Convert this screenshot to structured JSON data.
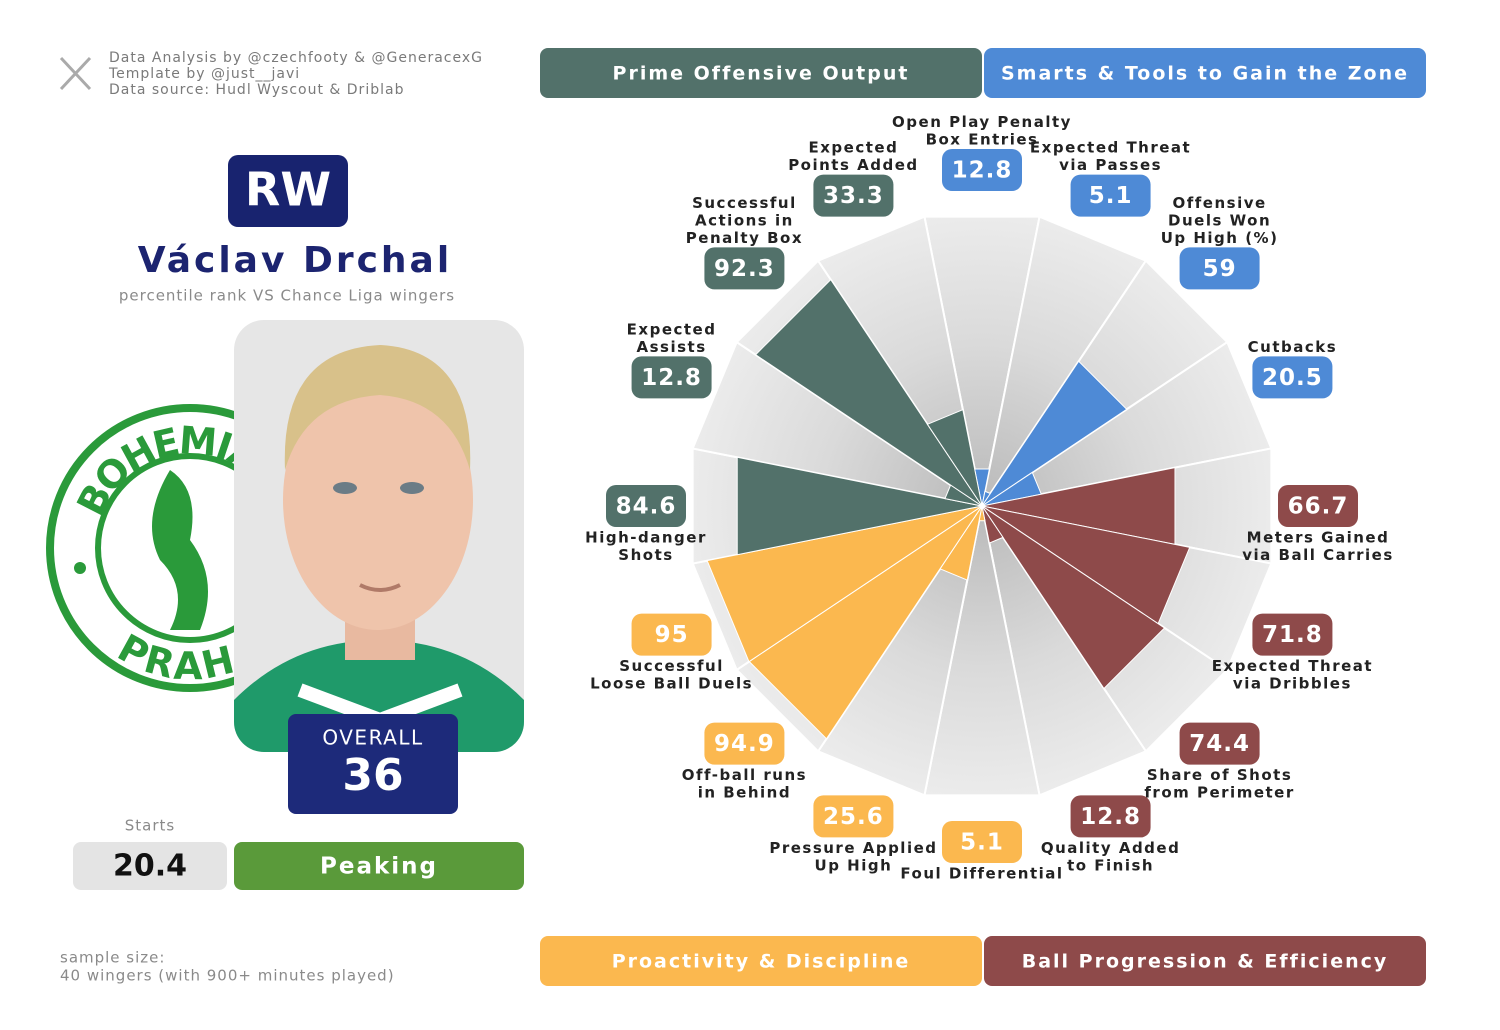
{
  "credits": [
    "Data Analysis by @czechfooty & @GeneracexG",
    "Template by @just__javi",
    "Data source: Hudl Wyscout & Driblab"
  ],
  "position": "RW",
  "player": "Václav Drchal",
  "subtitle": "percentile rank VS Chance Liga wingers",
  "club_logo": {
    "top": "BOHEMIANS",
    "bottom": "PRAHA"
  },
  "overall": {
    "label": "OVERALL",
    "value": 36
  },
  "starts": {
    "label": "Starts",
    "value": 20.4
  },
  "form": "Peaking",
  "sample_size": {
    "label": "sample size:",
    "text": "40 wingers (with 900+ minutes played)"
  },
  "chart_data": {
    "type": "pizza",
    "ylim": [
      0,
      100
    ],
    "series": [
      {
        "name": "Smarts & Tools to Gain the Zone",
        "color": "#4e8ad6",
        "categories": [
          [
            "Open Play Penalty",
            "Box Entries"
          ],
          [
            "Expected Threat",
            "via Passes"
          ],
          [
            "Offensive",
            "Duels Won",
            "Up High (%)"
          ],
          [
            "Cutbacks"
          ]
        ],
        "values": [
          12.8,
          5.1,
          59,
          20.5
        ]
      },
      {
        "name": "Ball Progression & Efficiency",
        "color": "#8e4a4a",
        "categories": [
          [
            "Meters Gained",
            "via Ball Carries"
          ],
          [
            "Expected Threat",
            "via Dribbles"
          ],
          [
            "Share of Shots",
            "from Perimeter"
          ],
          [
            "Quality Added",
            "to Finish"
          ]
        ],
        "values": [
          66.7,
          71.8,
          74.4,
          12.8
        ]
      },
      {
        "name": "Proactivity & Discipline",
        "color": "#fbb84f",
        "categories": [
          [
            "Foul Differential"
          ],
          [
            "Pressure Applied",
            "Up High"
          ],
          [
            "Off-ball runs",
            "in Behind"
          ],
          [
            "Successful",
            "Loose Ball Duels"
          ]
        ],
        "values": [
          5.1,
          25.6,
          94.9,
          95
        ]
      },
      {
        "name": "Prime Offensive Output",
        "color": "#52716a",
        "categories": [
          [
            "High-danger",
            "Shots"
          ],
          [
            "Expected",
            "Assists"
          ],
          [
            "Successful",
            "Actions in",
            "Penalty Box"
          ],
          [
            "Expected",
            "Points Added"
          ]
        ],
        "values": [
          84.6,
          12.8,
          92.3,
          33.3
        ]
      }
    ]
  }
}
